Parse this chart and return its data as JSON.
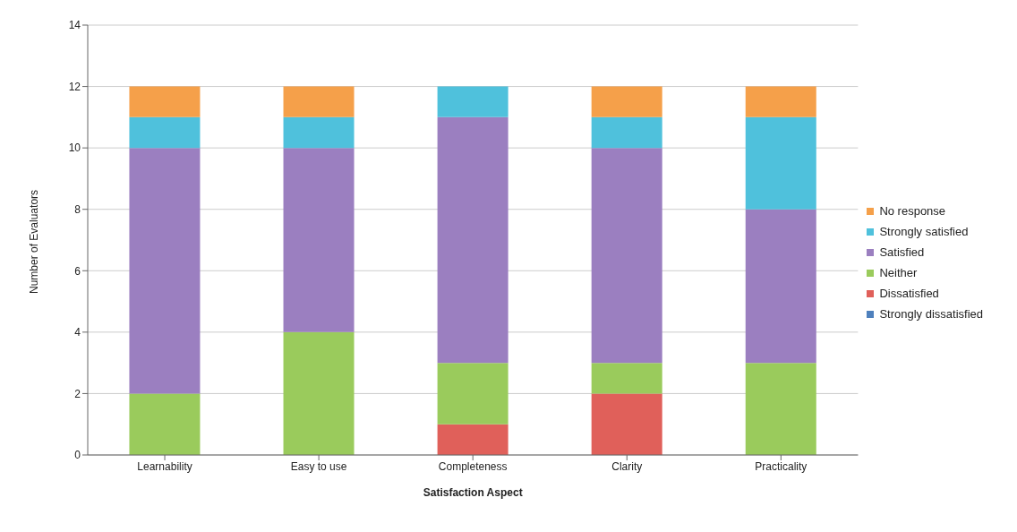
{
  "chart_data": {
    "type": "bar",
    "stacked": true,
    "xlabel": "Satisfaction Aspect",
    "ylabel": "Number of Evaluators",
    "categories": [
      "Learnability",
      "Easy to use",
      "Completeness",
      "Clarity",
      "Practicality"
    ],
    "series": [
      {
        "name": "Strongly dissatisfied",
        "color": "#4f81bd",
        "values": [
          0,
          0,
          0,
          0,
          0
        ]
      },
      {
        "name": "Dissatisfied",
        "color": "#e0605a",
        "values": [
          0,
          0,
          1,
          2,
          0
        ]
      },
      {
        "name": "Neither",
        "color": "#9acb5c",
        "values": [
          2,
          4,
          2,
          1,
          3
        ]
      },
      {
        "name": "Satisfied",
        "color": "#9b7fc0",
        "values": [
          8,
          6,
          8,
          7,
          5
        ]
      },
      {
        "name": "Strongly satisfied",
        "color": "#4fc1dc",
        "values": [
          1,
          1,
          1,
          1,
          3
        ]
      },
      {
        "name": "No response",
        "color": "#f5a04a",
        "values": [
          1,
          1,
          0,
          1,
          1
        ]
      }
    ],
    "ylim": [
      0,
      14
    ],
    "yticks": [
      0,
      2,
      4,
      6,
      8,
      10,
      12,
      14
    ],
    "grid": "y",
    "legend": "right"
  }
}
